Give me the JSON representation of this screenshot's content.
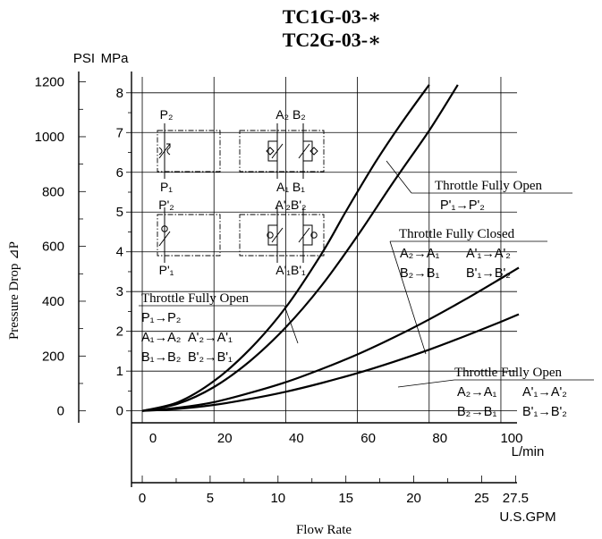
{
  "chart_data": {
    "type": "line",
    "title": [
      "TC1G-03-∗",
      "TC2G-03-∗"
    ],
    "xlabel": "Flow Rate",
    "ylabel": "Pressure Drop ⊿P",
    "x_primary": {
      "unit": "L/min",
      "ticks": [
        "0",
        "20",
        "40",
        "60",
        "80",
        "100"
      ],
      "range": [
        -3,
        104.5
      ]
    },
    "x_secondary": {
      "unit": "U.S.GPM",
      "ticks": [
        "0",
        "5",
        "10",
        "15",
        "20",
        "25",
        "27.5"
      ]
    },
    "y_primary": {
      "unit": "MPa",
      "ticks": [
        "0",
        "1",
        "2",
        "3",
        "4",
        "5",
        "6",
        "7",
        "8"
      ],
      "range": [
        -0.3,
        8.4
      ]
    },
    "y_secondary": {
      "unit": "PSI",
      "ticks": [
        "0",
        "200",
        "400",
        "600",
        "800",
        "1000",
        "1200"
      ]
    },
    "grid": true,
    "series": [
      {
        "label_lines": [
          [
            "Throttle Fully Open"
          ],
          [
            "P₁→P₂"
          ],
          [
            "A₁→A₂",
            "A'₂→A'₁"
          ],
          [
            "B₁→B₂",
            "B'₂→B'₁"
          ]
        ],
        "x": [
          0,
          10,
          20,
          30,
          40,
          50,
          57,
          65,
          72,
          80
        ],
        "y": [
          0,
          0.22,
          0.75,
          1.55,
          2.6,
          3.95,
          5.05,
          6.25,
          7.2,
          8.2
        ]
      },
      {
        "label_lines": [
          [
            "Throttle Fully Open"
          ],
          [
            "P'₁→P'₂"
          ]
        ],
        "x": [
          0,
          10,
          20,
          30,
          40,
          50,
          60,
          70,
          80,
          88
        ],
        "y": [
          0,
          0.18,
          0.6,
          1.25,
          2.1,
          3.15,
          4.4,
          5.75,
          7.05,
          8.2
        ]
      },
      {
        "label_lines": [
          [
            "Throttle Fully Closed"
          ],
          [
            "A₂→A₁",
            "A'₁→A'₂"
          ],
          [
            "B₂→B₁",
            "B'₁→B'₂"
          ]
        ],
        "x": [
          0,
          10,
          20,
          30,
          40,
          50,
          60,
          70,
          80,
          90,
          100,
          105
        ],
        "y": [
          0,
          0.08,
          0.22,
          0.45,
          0.72,
          1.05,
          1.42,
          1.84,
          2.3,
          2.8,
          3.33,
          3.6
        ]
      },
      {
        "label_lines": [
          [
            "Throttle Fully Open"
          ],
          [
            "A₂→A₁",
            "A'₁→A'₂"
          ],
          [
            "B₂→B₁",
            "B'₁→B'₂"
          ]
        ],
        "x": [
          0,
          10,
          20,
          30,
          40,
          50,
          60,
          70,
          80,
          90,
          100,
          105
        ],
        "y": [
          0,
          0.05,
          0.15,
          0.3,
          0.48,
          0.7,
          0.95,
          1.23,
          1.54,
          1.88,
          2.24,
          2.43
        ]
      }
    ]
  },
  "symbols": {
    "p2": "P₂",
    "p1": "P₁",
    "p2p": "P'₂",
    "p1p": "P'₁",
    "a2b2": "A₂ B₂",
    "a1b1": "A₁ B₁",
    "a2pb2p": "A'₂B'₂",
    "a1pb1p": "A'₁B'₁"
  }
}
